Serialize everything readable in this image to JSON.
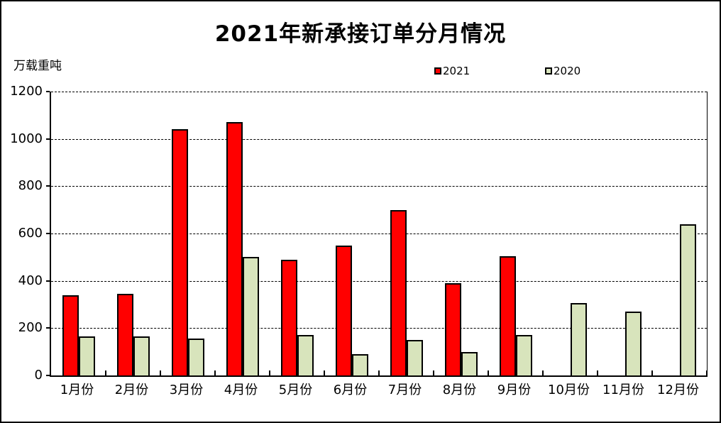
{
  "title": "2021年新承接订单分月情况",
  "unit_label": "万载重吨",
  "colors": {
    "series_2021": "#FF0000",
    "series_2020": "#D8E4BC",
    "axis": "#000000",
    "background": "#FFFFFF"
  },
  "legend": {
    "items": [
      {
        "label": "2021",
        "color": "#FF0000"
      },
      {
        "label": "2020",
        "color": "#D8E4BC"
      }
    ],
    "position": "top-center"
  },
  "chart_data": {
    "type": "bar",
    "title": "2021年新承接订单分月情况",
    "xlabel": "",
    "ylabel": "万载重吨",
    "categories": [
      "1月份",
      "2月份",
      "3月份",
      "4月份",
      "5月份",
      "6月份",
      "7月份",
      "8月份",
      "9月份",
      "10月份",
      "11月份",
      "12月份"
    ],
    "series": [
      {
        "name": "2021",
        "color": "#FF0000",
        "values": [
          340,
          345,
          1040,
          1070,
          490,
          550,
          700,
          390,
          505,
          null,
          null,
          null
        ]
      },
      {
        "name": "2020",
        "color": "#D8E4BC",
        "values": [
          165,
          165,
          155,
          500,
          170,
          90,
          150,
          100,
          170,
          305,
          270,
          640
        ]
      }
    ],
    "ylim": [
      0,
      1200
    ],
    "yticks": [
      0,
      200,
      400,
      600,
      800,
      1000,
      1200
    ],
    "grid": "horizontal-dashed",
    "legend_position": "top"
  }
}
